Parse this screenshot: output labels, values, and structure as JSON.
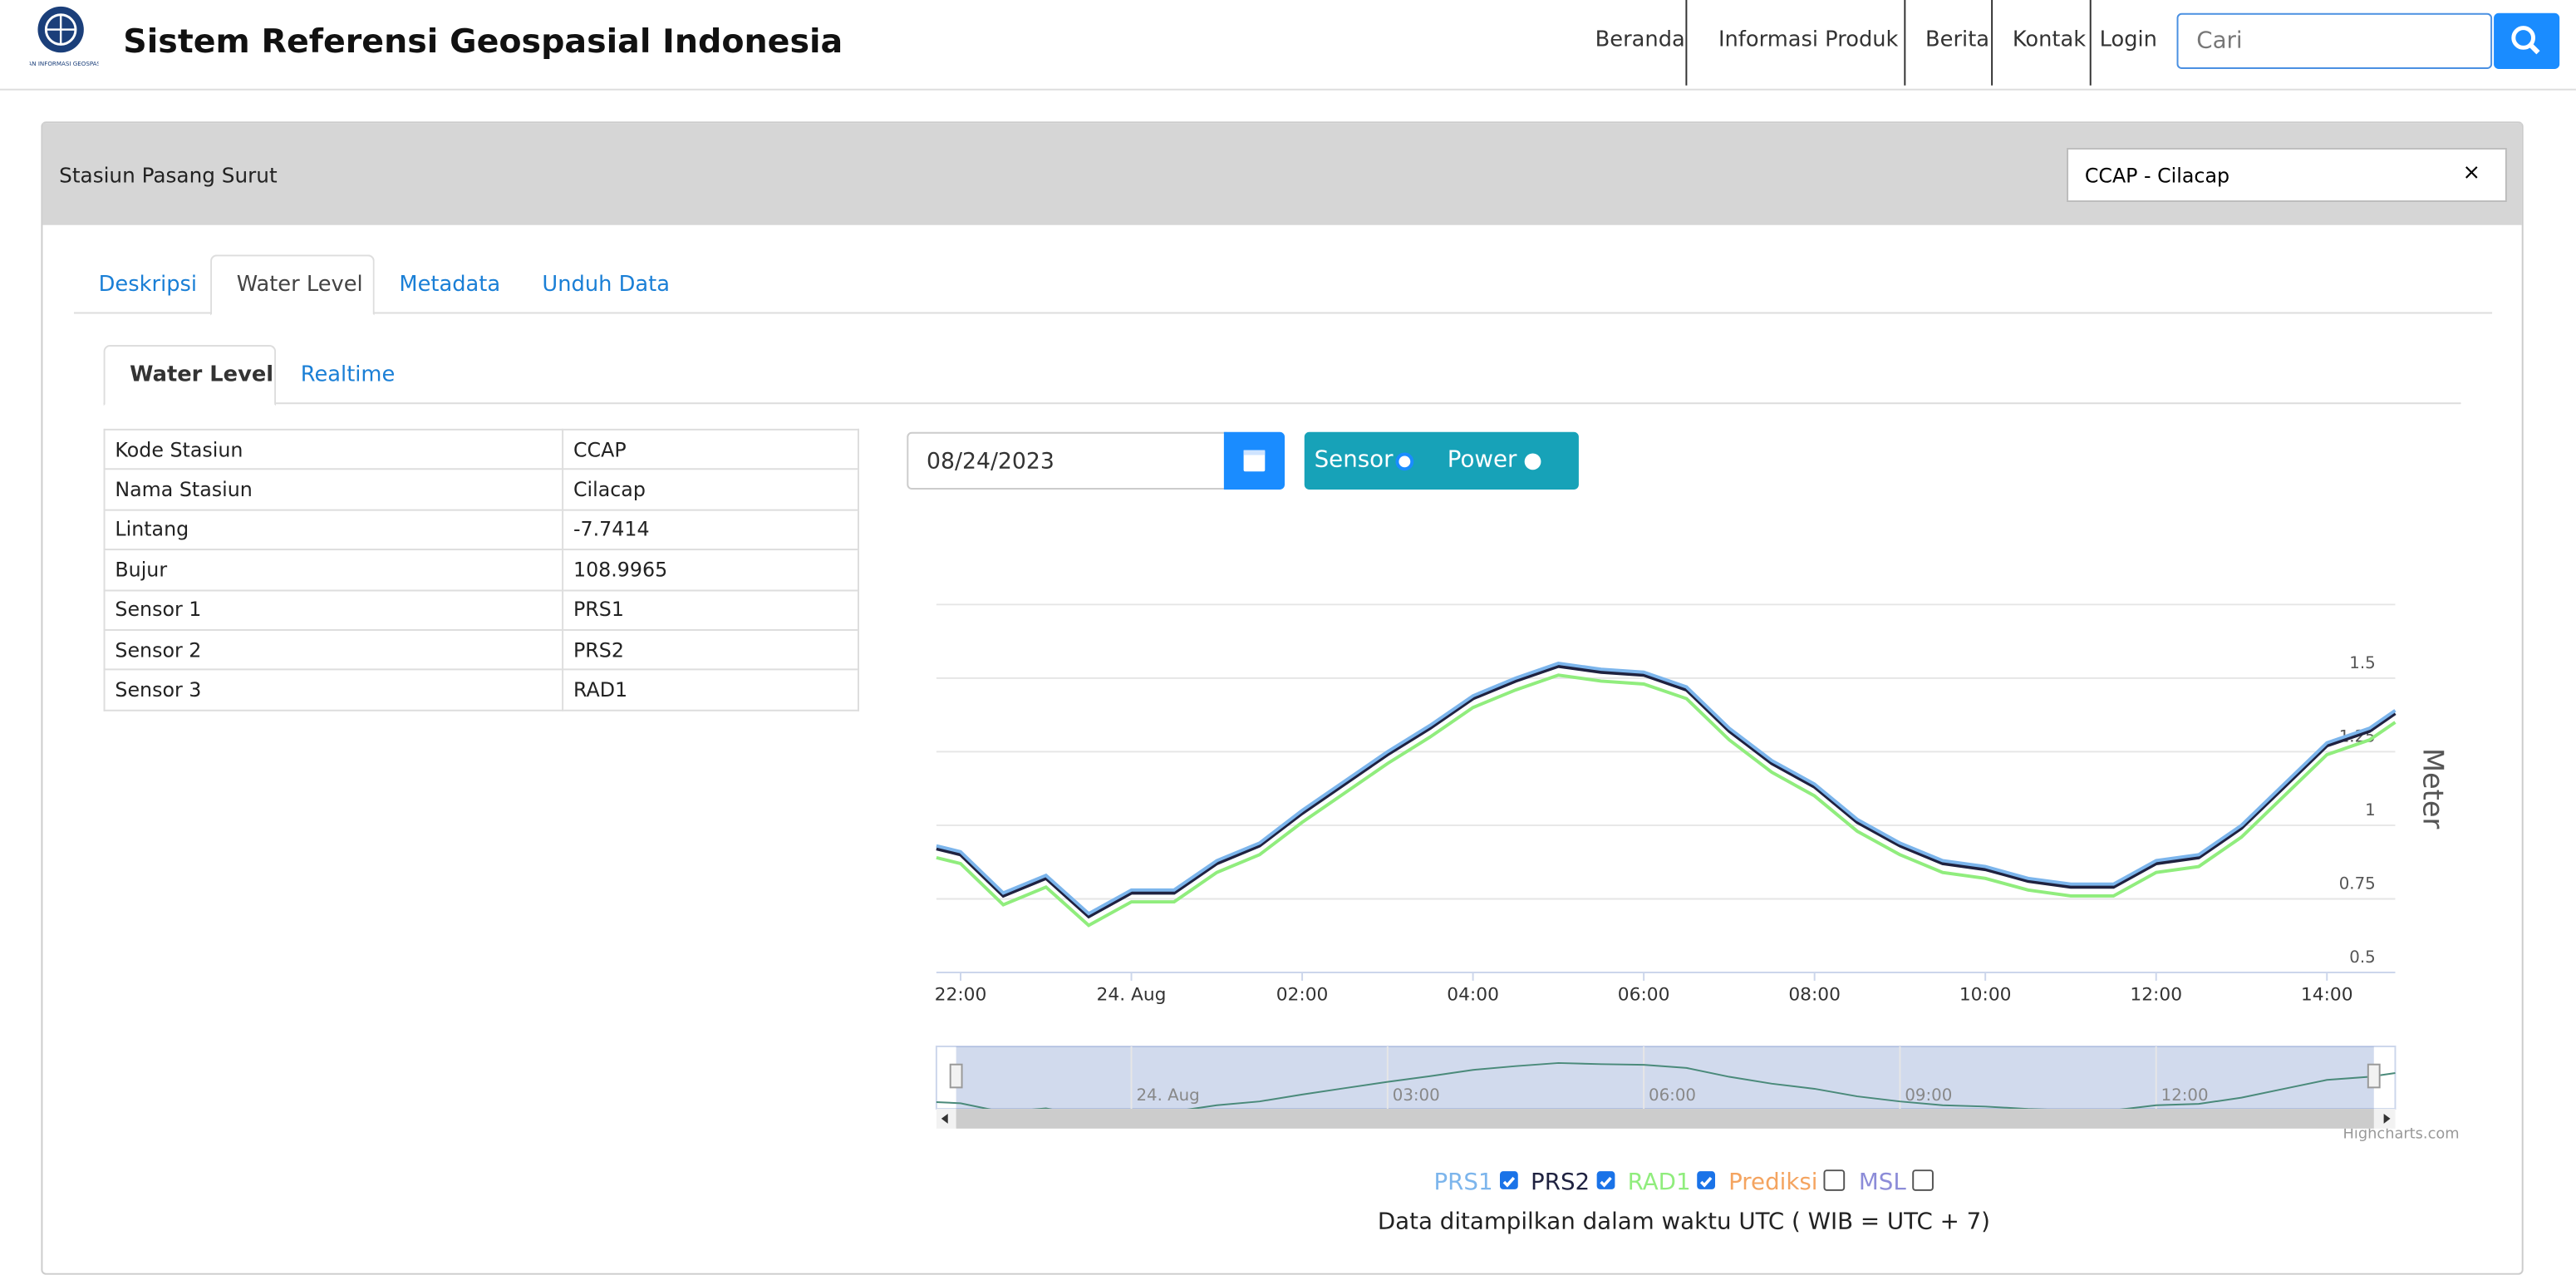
{
  "header": {
    "logo_text": "BADAN INFORMASI GEOSPASIAL",
    "title": "Sistem Referensi Geospasial Indonesia",
    "nav": [
      "Beranda",
      "Informasi Produk",
      "Berita",
      "Kontak",
      "Login"
    ],
    "search_placeholder": "Cari"
  },
  "panel": {
    "title": "Stasiun Pasang Surut",
    "station_select": "CCAP - Cilacap",
    "clear": "×"
  },
  "tabs": [
    "Deskripsi",
    "Water Level",
    "Metadata",
    "Unduh Data"
  ],
  "subtabs": [
    "Water Level",
    "Realtime"
  ],
  "table": {
    "rows": [
      [
        "Kode Stasiun",
        "CCAP"
      ],
      [
        "Nama Stasiun",
        "Cilacap"
      ],
      [
        "Lintang",
        "-7.7414"
      ],
      [
        "Bujur",
        "108.9965"
      ],
      [
        "Sensor 1",
        "PRS1"
      ],
      [
        "Sensor 2",
        "PRS2"
      ],
      [
        "Sensor 3",
        "RAD1"
      ]
    ]
  },
  "controls": {
    "date": "08/24/2023",
    "toggles": [
      "Sensor",
      "Power"
    ]
  },
  "chart_data": {
    "type": "line",
    "y_label": "Meter",
    "credits": "Highcharts.com",
    "x": [
      "2023-08-23T21:43",
      "2023-08-23T22:00",
      "2023-08-23T22:30",
      "2023-08-23T23:00",
      "2023-08-23T23:30",
      "2023-08-24T00:00",
      "2023-08-24T00:30",
      "2023-08-24T01:00",
      "2023-08-24T01:30",
      "2023-08-24T02:00",
      "2023-08-24T02:30",
      "2023-08-24T03:00",
      "2023-08-24T03:30",
      "2023-08-24T04:00",
      "2023-08-24T04:30",
      "2023-08-24T05:00",
      "2023-08-24T05:30",
      "2023-08-24T06:00",
      "2023-08-24T06:30",
      "2023-08-24T07:00",
      "2023-08-24T07:30",
      "2023-08-24T08:00",
      "2023-08-24T08:30",
      "2023-08-24T09:00",
      "2023-08-24T09:30",
      "2023-08-24T10:00",
      "2023-08-24T10:30",
      "2023-08-24T11:00",
      "2023-08-24T11:30",
      "2023-08-24T12:00",
      "2023-08-24T12:30",
      "2023-08-24T13:00",
      "2023-08-24T13:30",
      "2023-08-24T14:00",
      "2023-08-24T14:30",
      "2023-08-24T14:48"
    ],
    "series": [
      {
        "name": "PRS1",
        "color": "#7cb5ec",
        "values": [
          0.93,
          0.91,
          0.77,
          0.83,
          0.7,
          0.78,
          0.78,
          0.88,
          0.94,
          1.05,
          1.15,
          1.25,
          1.34,
          1.44,
          1.5,
          1.55,
          1.53,
          1.52,
          1.47,
          1.33,
          1.22,
          1.14,
          1.02,
          0.94,
          0.88,
          0.86,
          0.82,
          0.8,
          0.8,
          0.88,
          0.9,
          1.0,
          1.14,
          1.28,
          1.33,
          1.39
        ]
      },
      {
        "name": "PRS2",
        "color": "#1f2240",
        "values": [
          0.92,
          0.9,
          0.76,
          0.82,
          0.69,
          0.77,
          0.77,
          0.87,
          0.93,
          1.04,
          1.14,
          1.24,
          1.33,
          1.43,
          1.49,
          1.54,
          1.52,
          1.51,
          1.46,
          1.32,
          1.21,
          1.13,
          1.01,
          0.93,
          0.87,
          0.85,
          0.81,
          0.79,
          0.79,
          0.87,
          0.89,
          0.99,
          1.13,
          1.27,
          1.32,
          1.38
        ]
      },
      {
        "name": "RAD1",
        "color": "#90ed7d",
        "values": [
          0.89,
          0.87,
          0.73,
          0.79,
          0.66,
          0.74,
          0.74,
          0.84,
          0.9,
          1.01,
          1.11,
          1.21,
          1.3,
          1.4,
          1.46,
          1.51,
          1.49,
          1.48,
          1.43,
          1.29,
          1.18,
          1.1,
          0.98,
          0.9,
          0.84,
          0.82,
          0.78,
          0.76,
          0.76,
          0.84,
          0.86,
          0.96,
          1.1,
          1.24,
          1.29,
          1.35
        ]
      }
    ],
    "hidden_series": [
      {
        "name": "Prediksi",
        "color": "#f4a460"
      },
      {
        "name": "MSL",
        "color": "#8c8cd8"
      }
    ],
    "xlim": [
      "2023-08-23T21:43",
      "2023-08-24T14:48"
    ],
    "xticks": [
      {
        "value": "2023-08-23T22:00",
        "label": "22:00"
      },
      {
        "value": "2023-08-24T00:00",
        "label": "24. Aug"
      },
      {
        "value": "2023-08-24T02:00",
        "label": "02:00"
      },
      {
        "value": "2023-08-24T04:00",
        "label": "04:00"
      },
      {
        "value": "2023-08-24T06:00",
        "label": "06:00"
      },
      {
        "value": "2023-08-24T08:00",
        "label": "08:00"
      },
      {
        "value": "2023-08-24T10:00",
        "label": "10:00"
      },
      {
        "value": "2023-08-24T12:00",
        "label": "12:00"
      },
      {
        "value": "2023-08-24T14:00",
        "label": "14:00"
      }
    ],
    "navigator_xticks": [
      {
        "value": "2023-08-24T00:00",
        "label": "24. Aug"
      },
      {
        "value": "2023-08-24T03:00",
        "label": "03:00"
      },
      {
        "value": "2023-08-24T06:00",
        "label": "06:00"
      },
      {
        "value": "2023-08-24T09:00",
        "label": "09:00"
      },
      {
        "value": "2023-08-24T12:00",
        "label": "12:00"
      }
    ],
    "ylim": [
      0.5,
      1.75
    ],
    "yticks": [
      0.5,
      0.75,
      1,
      1.25,
      1.5
    ],
    "grid": true
  },
  "footnote": "Data ditampilkan dalam waktu UTC ( WIB = UTC + 7)"
}
